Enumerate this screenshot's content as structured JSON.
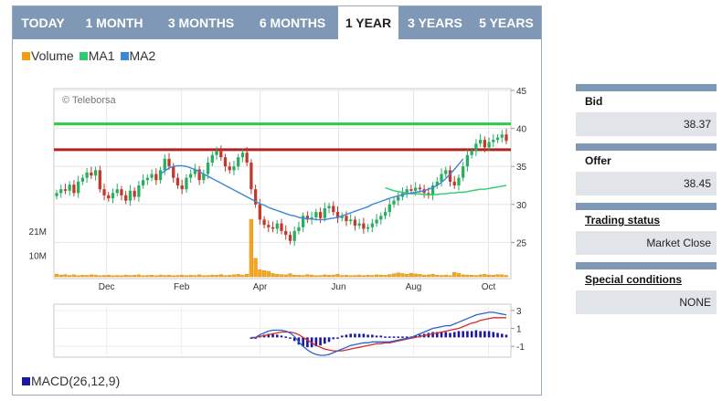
{
  "tabs": [
    {
      "label": "TODAY",
      "active": false
    },
    {
      "label": "1 MONTH",
      "active": false
    },
    {
      "label": "3 MONTHS",
      "active": false
    },
    {
      "label": "6 MONTHS",
      "active": false
    },
    {
      "label": "1 YEAR",
      "active": true
    },
    {
      "label": "3 YEARS",
      "active": false
    },
    {
      "label": "5 YEARS",
      "active": false
    }
  ],
  "legend": [
    {
      "label": "Volume",
      "color": "#f39c12"
    },
    {
      "label": "MA1",
      "color": "#2ecc71"
    },
    {
      "label": "MA2",
      "color": "#3a87d8"
    }
  ],
  "macd_legend": {
    "label": "MACD(26,12,9)",
    "color": "#1a1aa0"
  },
  "info": {
    "bid": {
      "label": "Bid",
      "value": "38.37"
    },
    "offer": {
      "label": "Offer",
      "value": "38.45"
    },
    "trading_status": {
      "label": "Trading status",
      "value": "Market Close"
    },
    "special_conditions": {
      "label": "Special conditions",
      "value": "NONE"
    }
  },
  "chart_data": [
    {
      "type": "candlestick",
      "watermark": "© Teleborsa",
      "x_tick_labels": [
        "Dec",
        "Feb",
        "Apr",
        "Jun",
        "Aug",
        "Oct"
      ],
      "price_axis": {
        "ticks": [
          25,
          30,
          35,
          40,
          45
        ],
        "ylim": [
          20,
          45
        ]
      },
      "volume_axis": {
        "tick_labels": [
          "21M",
          "10M"
        ],
        "ticks": [
          21000000,
          10000000
        ],
        "ylim": [
          0,
          32000000
        ]
      },
      "horizontal_lines": [
        {
          "value": 40.6,
          "color": "#2ecc40"
        },
        {
          "value": 37.2,
          "color": "#b22222"
        }
      ],
      "close": [
        31.5,
        32.0,
        31.8,
        32.6,
        31.5,
        33.0,
        33.5,
        34.2,
        33.8,
        34.5,
        32.0,
        31.2,
        30.8,
        31.5,
        32.0,
        31.2,
        30.5,
        31.8,
        31.0,
        32.5,
        33.2,
        33.5,
        34.0,
        33.2,
        34.5,
        36.0,
        35.0,
        33.5,
        32.5,
        32.0,
        33.5,
        34.0,
        34.6,
        33.2,
        34.0,
        35.5,
        36.5,
        37.0,
        36.2,
        35.0,
        34.5,
        35.0,
        36.2,
        36.8,
        35.5,
        32.0,
        30.0,
        28.0,
        27.3,
        27.0,
        26.8,
        27.5,
        26.5,
        26.0,
        25.2,
        26.5,
        27.0,
        28.5,
        28.0,
        28.3,
        29.0,
        28.2,
        29.5,
        29.8,
        29.0,
        28.2,
        28.5,
        27.8,
        28.0,
        27.2,
        27.5,
        26.8,
        27.0,
        27.5,
        28.0,
        28.5,
        29.0,
        30.0,
        30.5,
        31.0,
        31.5,
        32.0,
        31.8,
        32.2,
        32.0,
        31.5,
        31.2,
        32.5,
        33.0,
        34.0,
        34.5,
        33.0,
        32.5,
        33.5,
        35.0,
        36.5,
        37.0,
        38.0,
        38.5,
        37.5,
        38.2,
        38.5,
        38.8,
        39.2,
        38.37
      ],
      "ma1": {
        "x_start_index": 76,
        "values": [
          32.2,
          32.0,
          31.8,
          31.7,
          31.6,
          31.5,
          31.4,
          31.4,
          31.4,
          31.3,
          31.3,
          31.3,
          31.3,
          31.4,
          31.4,
          31.5,
          31.5,
          31.6,
          31.6,
          31.7,
          31.8,
          31.9,
          32.0,
          32.0,
          32.1,
          32.2,
          32.3,
          32.4,
          32.5
        ]
      },
      "ma2": {
        "x_start_index": 24,
        "values": [
          34.0,
          34.4,
          34.8,
          35.0,
          35.1,
          35.1,
          35.0,
          34.8,
          34.6,
          34.3,
          34.0,
          33.7,
          33.4,
          33.1,
          32.8,
          32.5,
          32.2,
          31.9,
          31.6,
          31.3,
          31.0,
          30.7,
          30.4,
          30.1,
          29.9,
          29.6,
          29.4,
          29.2,
          29.0,
          28.8,
          28.6,
          28.5,
          28.3,
          28.2,
          28.1,
          28.1,
          28.0,
          28.0,
          28.0,
          28.1,
          28.2,
          28.3,
          28.5,
          28.7,
          28.9,
          29.1,
          29.3,
          29.5,
          29.7,
          30.0,
          30.2,
          30.4,
          30.6,
          30.8,
          31.0,
          31.1,
          31.3,
          31.4,
          31.5,
          31.6,
          31.7,
          31.8,
          32.0,
          32.2,
          32.5,
          32.9,
          33.4,
          34.0,
          34.6,
          35.3,
          36.0
        ]
      },
      "volume_millions": [
        1.2,
        0.8,
        1.0,
        0.6,
        0.9,
        0.5,
        0.7,
        0.6,
        0.9,
        0.8,
        0.5,
        0.6,
        0.7,
        0.5,
        0.6,
        0.5,
        0.8,
        0.6,
        0.7,
        0.9,
        0.5,
        0.6,
        0.7,
        0.5,
        0.8,
        0.6,
        0.7,
        0.5,
        0.6,
        0.8,
        0.5,
        0.7,
        0.6,
        0.9,
        0.5,
        0.6,
        0.8,
        0.7,
        1.0,
        0.6,
        0.7,
        0.9,
        1.1,
        0.8,
        1.2,
        26.5,
        8.5,
        3.2,
        2.8,
        2.5,
        1.5,
        1.2,
        1.0,
        0.9,
        1.4,
        0.8,
        0.7,
        0.6,
        1.0,
        0.8,
        0.5,
        0.6,
        0.9,
        0.7,
        0.8,
        1.2,
        0.6,
        0.7,
        0.5,
        0.6,
        0.8,
        0.5,
        0.7,
        0.6,
        0.9,
        0.8,
        0.7,
        1.0,
        1.4,
        1.8,
        1.5,
        1.2,
        1.6,
        1.3,
        1.1,
        0.8,
        0.9,
        1.2,
        0.7,
        0.6,
        0.8,
        0.5,
        2.0,
        1.5,
        0.9,
        0.8,
        0.7,
        0.6,
        0.9,
        1.1,
        0.8,
        0.7,
        1.0,
        0.9,
        0.6
      ]
    },
    {
      "type": "macd",
      "y_tick_labels": [
        "3",
        "1",
        "-1"
      ],
      "ylim": [
        -2,
        3.5
      ],
      "x_start_index": 45,
      "macd": [
        -0.1,
        0.0,
        0.3,
        0.5,
        0.7,
        0.8,
        0.8,
        0.8,
        0.7,
        0.5,
        0.1,
        -0.5,
        -1.0,
        -1.4,
        -1.7,
        -1.9,
        -2.0,
        -2.0,
        -1.9,
        -1.7,
        -1.5,
        -1.3,
        -1.1,
        -0.9,
        -0.8,
        -0.7,
        -0.6,
        -0.6,
        -0.5,
        -0.5,
        -0.5,
        -0.5,
        -0.5,
        -0.4,
        -0.3,
        -0.2,
        -0.1,
        0.0,
        0.2,
        0.4,
        0.6,
        0.8,
        1.0,
        1.1,
        1.2,
        1.3,
        1.3,
        1.5,
        1.7,
        1.9,
        2.1,
        2.3,
        2.5,
        2.6,
        2.7,
        2.8,
        2.8,
        2.7,
        2.6,
        2.5
      ],
      "signal": [
        0.0,
        0.0,
        0.1,
        0.2,
        0.3,
        0.4,
        0.5,
        0.6,
        0.6,
        0.6,
        0.5,
        0.3,
        0.0,
        -0.3,
        -0.6,
        -0.9,
        -1.1,
        -1.3,
        -1.4,
        -1.5,
        -1.5,
        -1.5,
        -1.4,
        -1.3,
        -1.2,
        -1.1,
        -1.0,
        -0.9,
        -0.8,
        -0.7,
        -0.7,
        -0.6,
        -0.6,
        -0.5,
        -0.4,
        -0.3,
        -0.2,
        -0.1,
        0.0,
        0.1,
        0.2,
        0.3,
        0.4,
        0.5,
        0.6,
        0.7,
        0.8,
        0.9,
        1.0,
        1.2,
        1.4,
        1.6,
        1.7,
        1.9,
        2.0,
        2.1,
        2.2,
        2.2,
        2.2,
        2.2
      ],
      "colors": {
        "macd": "#2a5fd6",
        "signal": "#d62a2a",
        "histogram": "#1a1aa0"
      }
    }
  ]
}
